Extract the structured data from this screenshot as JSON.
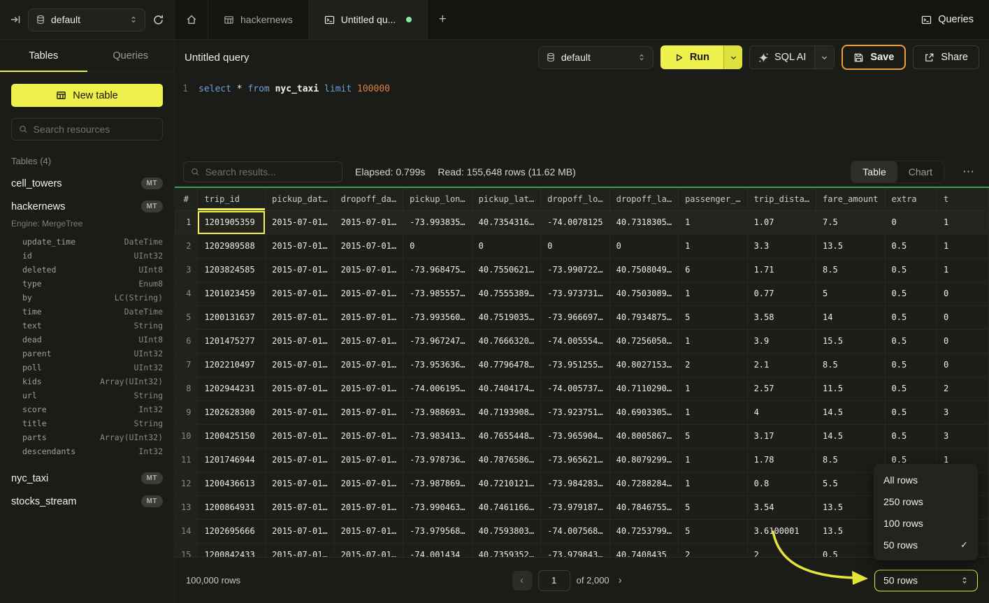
{
  "topbar": {
    "database": "default",
    "tabs": [
      {
        "label": "hackernews",
        "icon": "table-icon"
      },
      {
        "label": "Untitled qu...",
        "icon": "terminal-icon",
        "active": true,
        "unsaved": true
      }
    ],
    "queries_label": "Queries"
  },
  "sidebar": {
    "tabs": [
      "Tables",
      "Queries"
    ],
    "new_table_label": "New table",
    "search_placeholder": "Search resources",
    "section_label": "Tables (4)",
    "tables": [
      {
        "name": "cell_towers",
        "badge": "MT"
      },
      {
        "name": "hackernews",
        "badge": "MT",
        "expanded": true
      },
      {
        "name": "nyc_taxi",
        "badge": "MT"
      },
      {
        "name": "stocks_stream",
        "badge": "MT"
      }
    ],
    "engine_label": "Engine: MergeTree",
    "columns": [
      {
        "name": "update_time",
        "type": "DateTime"
      },
      {
        "name": "id",
        "type": "UInt32"
      },
      {
        "name": "deleted",
        "type": "UInt8"
      },
      {
        "name": "type",
        "type": "Enum8"
      },
      {
        "name": "by",
        "type": "LC(String)"
      },
      {
        "name": "time",
        "type": "DateTime"
      },
      {
        "name": "text",
        "type": "String"
      },
      {
        "name": "dead",
        "type": "UInt8"
      },
      {
        "name": "parent",
        "type": "UInt32"
      },
      {
        "name": "poll",
        "type": "UInt32"
      },
      {
        "name": "kids",
        "type": "Array(UInt32)"
      },
      {
        "name": "url",
        "type": "String"
      },
      {
        "name": "score",
        "type": "Int32"
      },
      {
        "name": "title",
        "type": "String"
      },
      {
        "name": "parts",
        "type": "Array(UInt32)"
      },
      {
        "name": "descendants",
        "type": "Int32"
      }
    ]
  },
  "query": {
    "title": "Untitled query",
    "database": "default",
    "run_label": "Run",
    "sql_ai_label": "SQL AI",
    "save_label": "Save",
    "share_label": "Share",
    "editor": {
      "line_number": "1",
      "tokens": [
        {
          "text": "select",
          "type": "keyword"
        },
        {
          "text": " * ",
          "type": "plain"
        },
        {
          "text": "from",
          "type": "keyword"
        },
        {
          "text": " nyc_taxi ",
          "type": "table"
        },
        {
          "text": "limit",
          "type": "keyword"
        },
        {
          "text": " 100000",
          "type": "number"
        }
      ]
    }
  },
  "results": {
    "search_placeholder": "Search results...",
    "elapsed": "Elapsed: 0.799s",
    "read": "Read: 155,648 rows (11.62 MB)",
    "view_tabs": [
      "Table",
      "Chart"
    ]
  },
  "table": {
    "headers": [
      "#",
      "trip_id",
      "pickup_dat…",
      "dropoff_da…",
      "pickup_lon…",
      "pickup_lat…",
      "dropoff_lo…",
      "dropoff_la…",
      "passenger_…",
      "trip_dista…",
      "fare_amount",
      "extra",
      "t"
    ],
    "rows": [
      [
        "1201905359",
        "2015-07-01…",
        "2015-07-01…",
        "-73.993835…",
        "40.7354316…",
        "-74.0078125",
        "40.7318305…",
        "1",
        "1.07",
        "7.5",
        "0",
        "1"
      ],
      [
        "1202989588",
        "2015-07-01…",
        "2015-07-01…",
        "0",
        "0",
        "0",
        "0",
        "1",
        "3.3",
        "13.5",
        "0.5",
        "1"
      ],
      [
        "1203824585",
        "2015-07-01…",
        "2015-07-01…",
        "-73.968475…",
        "40.7550621…",
        "-73.990722…",
        "40.7508049…",
        "6",
        "1.71",
        "8.5",
        "0.5",
        "1"
      ],
      [
        "1201023459",
        "2015-07-01…",
        "2015-07-01…",
        "-73.985557…",
        "40.7555389…",
        "-73.973731…",
        "40.7503089…",
        "1",
        "0.77",
        "5",
        "0.5",
        "0"
      ],
      [
        "1200131637",
        "2015-07-01…",
        "2015-07-01…",
        "-73.993560…",
        "40.7519035…",
        "-73.966697…",
        "40.7934875…",
        "5",
        "3.58",
        "14",
        "0.5",
        "0"
      ],
      [
        "1201475277",
        "2015-07-01…",
        "2015-07-01…",
        "-73.967247…",
        "40.7666320…",
        "-74.005554…",
        "40.7256050…",
        "1",
        "3.9",
        "15.5",
        "0.5",
        "0"
      ],
      [
        "1202210497",
        "2015-07-01…",
        "2015-07-01…",
        "-73.953636…",
        "40.7796478…",
        "-73.951255…",
        "40.8027153…",
        "2",
        "2.1",
        "8.5",
        "0.5",
        "0"
      ],
      [
        "1202944231",
        "2015-07-01…",
        "2015-07-01…",
        "-74.006195…",
        "40.7404174…",
        "-74.005737…",
        "40.7110290…",
        "1",
        "2.57",
        "11.5",
        "0.5",
        "2"
      ],
      [
        "1202628300",
        "2015-07-01…",
        "2015-07-01…",
        "-73.988693…",
        "40.7193908…",
        "-73.923751…",
        "40.6903305…",
        "1",
        "4",
        "14.5",
        "0.5",
        "3"
      ],
      [
        "1200425150",
        "2015-07-01…",
        "2015-07-01…",
        "-73.983413…",
        "40.7655448…",
        "-73.965904…",
        "40.8005867…",
        "5",
        "3.17",
        "14.5",
        "0.5",
        "3"
      ],
      [
        "1201746944",
        "2015-07-01…",
        "2015-07-01…",
        "-73.978736…",
        "40.7876586…",
        "-73.965621…",
        "40.8079299…",
        "1",
        "1.78",
        "8.5",
        "0.5",
        "1"
      ],
      [
        "1200436613",
        "2015-07-01…",
        "2015-07-01…",
        "-73.987869…",
        "40.7210121…",
        "-73.984283…",
        "40.7288284…",
        "1",
        "0.8",
        "5.5",
        "0.5",
        ""
      ],
      [
        "1200864931",
        "2015-07-01…",
        "2015-07-01…",
        "-73.990463…",
        "40.7461166…",
        "-73.979187…",
        "40.7846755…",
        "5",
        "3.54",
        "13.5",
        "0.5",
        ""
      ],
      [
        "1202695666",
        "2015-07-01…",
        "2015-07-01…",
        "-73.979568…",
        "40.7593803…",
        "-74.007568…",
        "40.7253799…",
        "5",
        "3.6100001",
        "13.5",
        "0.5",
        ""
      ],
      [
        "1200842433",
        "2015-07-01…",
        "2015-07-01…",
        "-74.001434",
        "40.7359352…",
        "-73.979843…",
        "40.7408435",
        "2",
        "2",
        "0.5",
        "",
        ""
      ]
    ]
  },
  "footer": {
    "total_rows": "100,000 rows",
    "page": "1",
    "page_total": "of 2,000",
    "page_size": "50 rows"
  },
  "page_size_menu": {
    "items": [
      {
        "label": "All rows",
        "selected": false
      },
      {
        "label": "250 rows",
        "selected": false
      },
      {
        "label": "100 rows",
        "selected": false
      },
      {
        "label": "50 rows",
        "selected": true
      }
    ]
  },
  "icons": {
    "more": "⋯",
    "prev": "‹",
    "next": "›",
    "plus": "+",
    "check": "✓"
  },
  "colors": {
    "accent_yellow": "#eef04b",
    "save_highlight_border": "#ed9f3c",
    "unsaved_green_dot": "#8ce99a",
    "success_green_line": "#3f9e4a",
    "selected_cell_border": "#f2f351",
    "annotation_arrow": "#e4e53a"
  }
}
